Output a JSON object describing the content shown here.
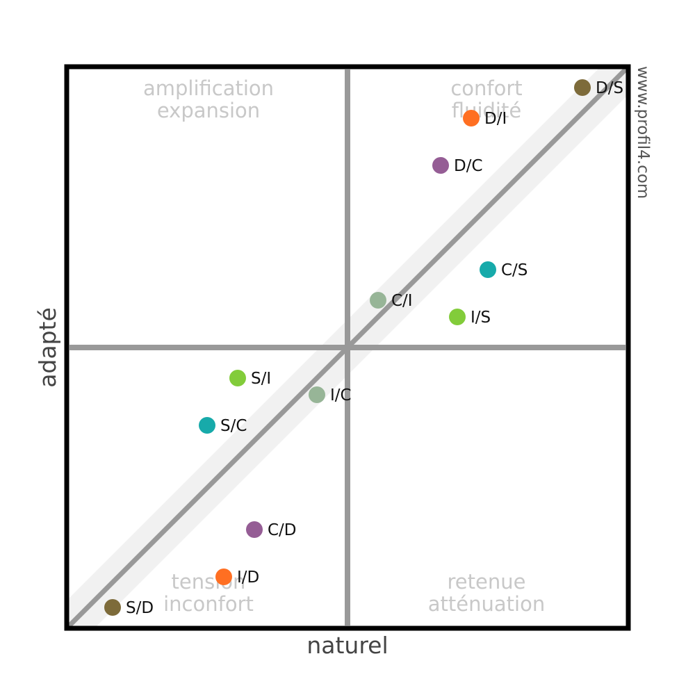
{
  "chart_data": {
    "type": "scatter",
    "title": "",
    "xlabel": "naturel",
    "ylabel": "adapté",
    "xlim": [
      -100,
      100
    ],
    "ylim": [
      -100,
      100
    ],
    "grid": false,
    "watermark": "www.profil4.com",
    "quadrants": {
      "top_left": [
        "amplification",
        "expansion"
      ],
      "top_right": [
        "confort",
        "fluidité"
      ],
      "bottom_left": [
        "tension",
        "inconfort"
      ],
      "bottom_right": [
        "retenue",
        "atténuation"
      ]
    },
    "diagonal_band_halfwidth": 10,
    "points": [
      {
        "label": "D/S",
        "x": 84.5,
        "y": 93.5,
        "color": "#7d6b3a"
      },
      {
        "label": "D/I",
        "x": 44.5,
        "y": 82.5,
        "color": "#ff6f22"
      },
      {
        "label": "D/C",
        "x": 33.5,
        "y": 65.5,
        "color": "#955d95"
      },
      {
        "label": "C/S",
        "x": 50.5,
        "y": 28,
        "color": "#17aaaa"
      },
      {
        "label": "C/I",
        "x": 11,
        "y": 17,
        "color": "#97b597"
      },
      {
        "label": "I/S",
        "x": 39.5,
        "y": 11,
        "color": "#82cc3a"
      },
      {
        "label": "S/I",
        "x": -39.5,
        "y": -11,
        "color": "#82cc3a"
      },
      {
        "label": "I/C",
        "x": -11,
        "y": -17,
        "color": "#97b597"
      },
      {
        "label": "S/C",
        "x": -50.5,
        "y": -28,
        "color": "#17aaaa"
      },
      {
        "label": "C/D",
        "x": -33.5,
        "y": -65.5,
        "color": "#955d95"
      },
      {
        "label": "I/D",
        "x": -44.5,
        "y": -82.5,
        "color": "#ff6f22"
      },
      {
        "label": "S/D",
        "x": -84.5,
        "y": -93.5,
        "color": "#7d6b3a"
      }
    ]
  }
}
